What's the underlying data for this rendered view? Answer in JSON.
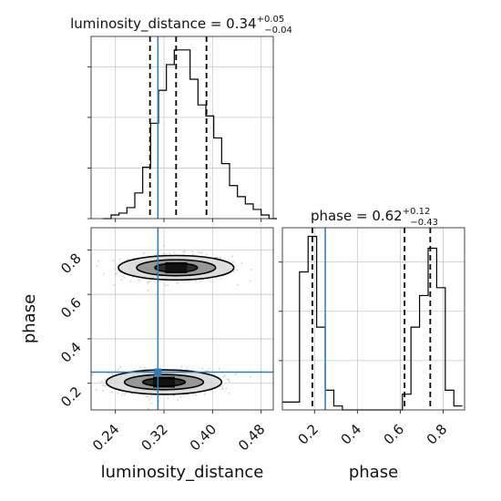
{
  "chart_data": {
    "type": "corner",
    "parameters": [
      "luminosity_distance",
      "phase"
    ],
    "truths": {
      "luminosity_distance": 0.31,
      "phase": 0.25
    },
    "panels": [
      {
        "id": "luminosity_distance-marginal",
        "type": "histogram",
        "title": "luminosity_distance = 0.34",
        "title_upper_err": "+0.05",
        "title_lower_err": "−0.04",
        "bin_edges": [
          0.22,
          0.233,
          0.246,
          0.259,
          0.272,
          0.285,
          0.298,
          0.311,
          0.324,
          0.337,
          0.35,
          0.363,
          0.376,
          0.389,
          0.402,
          0.415,
          0.428,
          0.441,
          0.454,
          0.467,
          0.48,
          0.493,
          0.506
        ],
        "counts": [
          0,
          2,
          3,
          6,
          14,
          28,
          52,
          70,
          84,
          92,
          92,
          76,
          62,
          56,
          44,
          30,
          18,
          12,
          8,
          5,
          2,
          0
        ],
        "quantiles": [
          0.297,
          0.34,
          0.39
        ],
        "xlim": [
          0.2,
          0.5
        ],
        "grid": true
      },
      {
        "id": "joint-density",
        "type": "2d-histogram-contour",
        "xlabel": "luminosity_distance",
        "ylabel": "phase",
        "xlim": [
          0.2,
          0.5
        ],
        "ylim": [
          0.08,
          0.9
        ],
        "xticks": [
          "0.24",
          "0.32",
          "0.40",
          "0.48"
        ],
        "yticks": [
          "0.2",
          "0.4",
          "0.6",
          "0.8"
        ],
        "modes": [
          {
            "x_center": 0.34,
            "y_center": 0.72,
            "contour_levels": [
              [
                0.095,
                0.055
              ],
              [
                0.065,
                0.036
              ],
              [
                0.035,
                0.02
              ]
            ]
          },
          {
            "x_center": 0.32,
            "y_center": 0.205,
            "contour_levels": [
              [
                0.095,
                0.055
              ],
              [
                0.065,
                0.034
              ],
              [
                0.035,
                0.018
              ]
            ]
          }
        ],
        "grid": true
      },
      {
        "id": "phase-marginal",
        "type": "histogram",
        "title": "phase = 0.62",
        "title_upper_err": "+0.12",
        "title_lower_err": "−0.43",
        "bin_edges": [
          0.05,
          0.09,
          0.13,
          0.17,
          0.21,
          0.25,
          0.29,
          0.33,
          0.37,
          0.41,
          0.45,
          0.49,
          0.53,
          0.57,
          0.61,
          0.65,
          0.69,
          0.73,
          0.77,
          0.81,
          0.85,
          0.89
        ],
        "counts": [
          4,
          4,
          70,
          88,
          42,
          10,
          2,
          0,
          0,
          0,
          0,
          0,
          0,
          0,
          8,
          42,
          58,
          82,
          62,
          10,
          2
        ],
        "quantiles": [
          0.19,
          0.62,
          0.74
        ],
        "xlim": [
          0.05,
          0.9
        ],
        "xticks": [
          "0.2",
          "0.4",
          "0.6",
          "0.8"
        ],
        "xlabel": "phase",
        "grid": true
      }
    ],
    "colors": {
      "truth": "#2f7ab5",
      "histogram": "#000000",
      "scatter": "#9a9a9a",
      "density_light": "#d9d9d9",
      "density_mid": "#8c8c8c",
      "density_dark": "#1a1a1a"
    }
  }
}
